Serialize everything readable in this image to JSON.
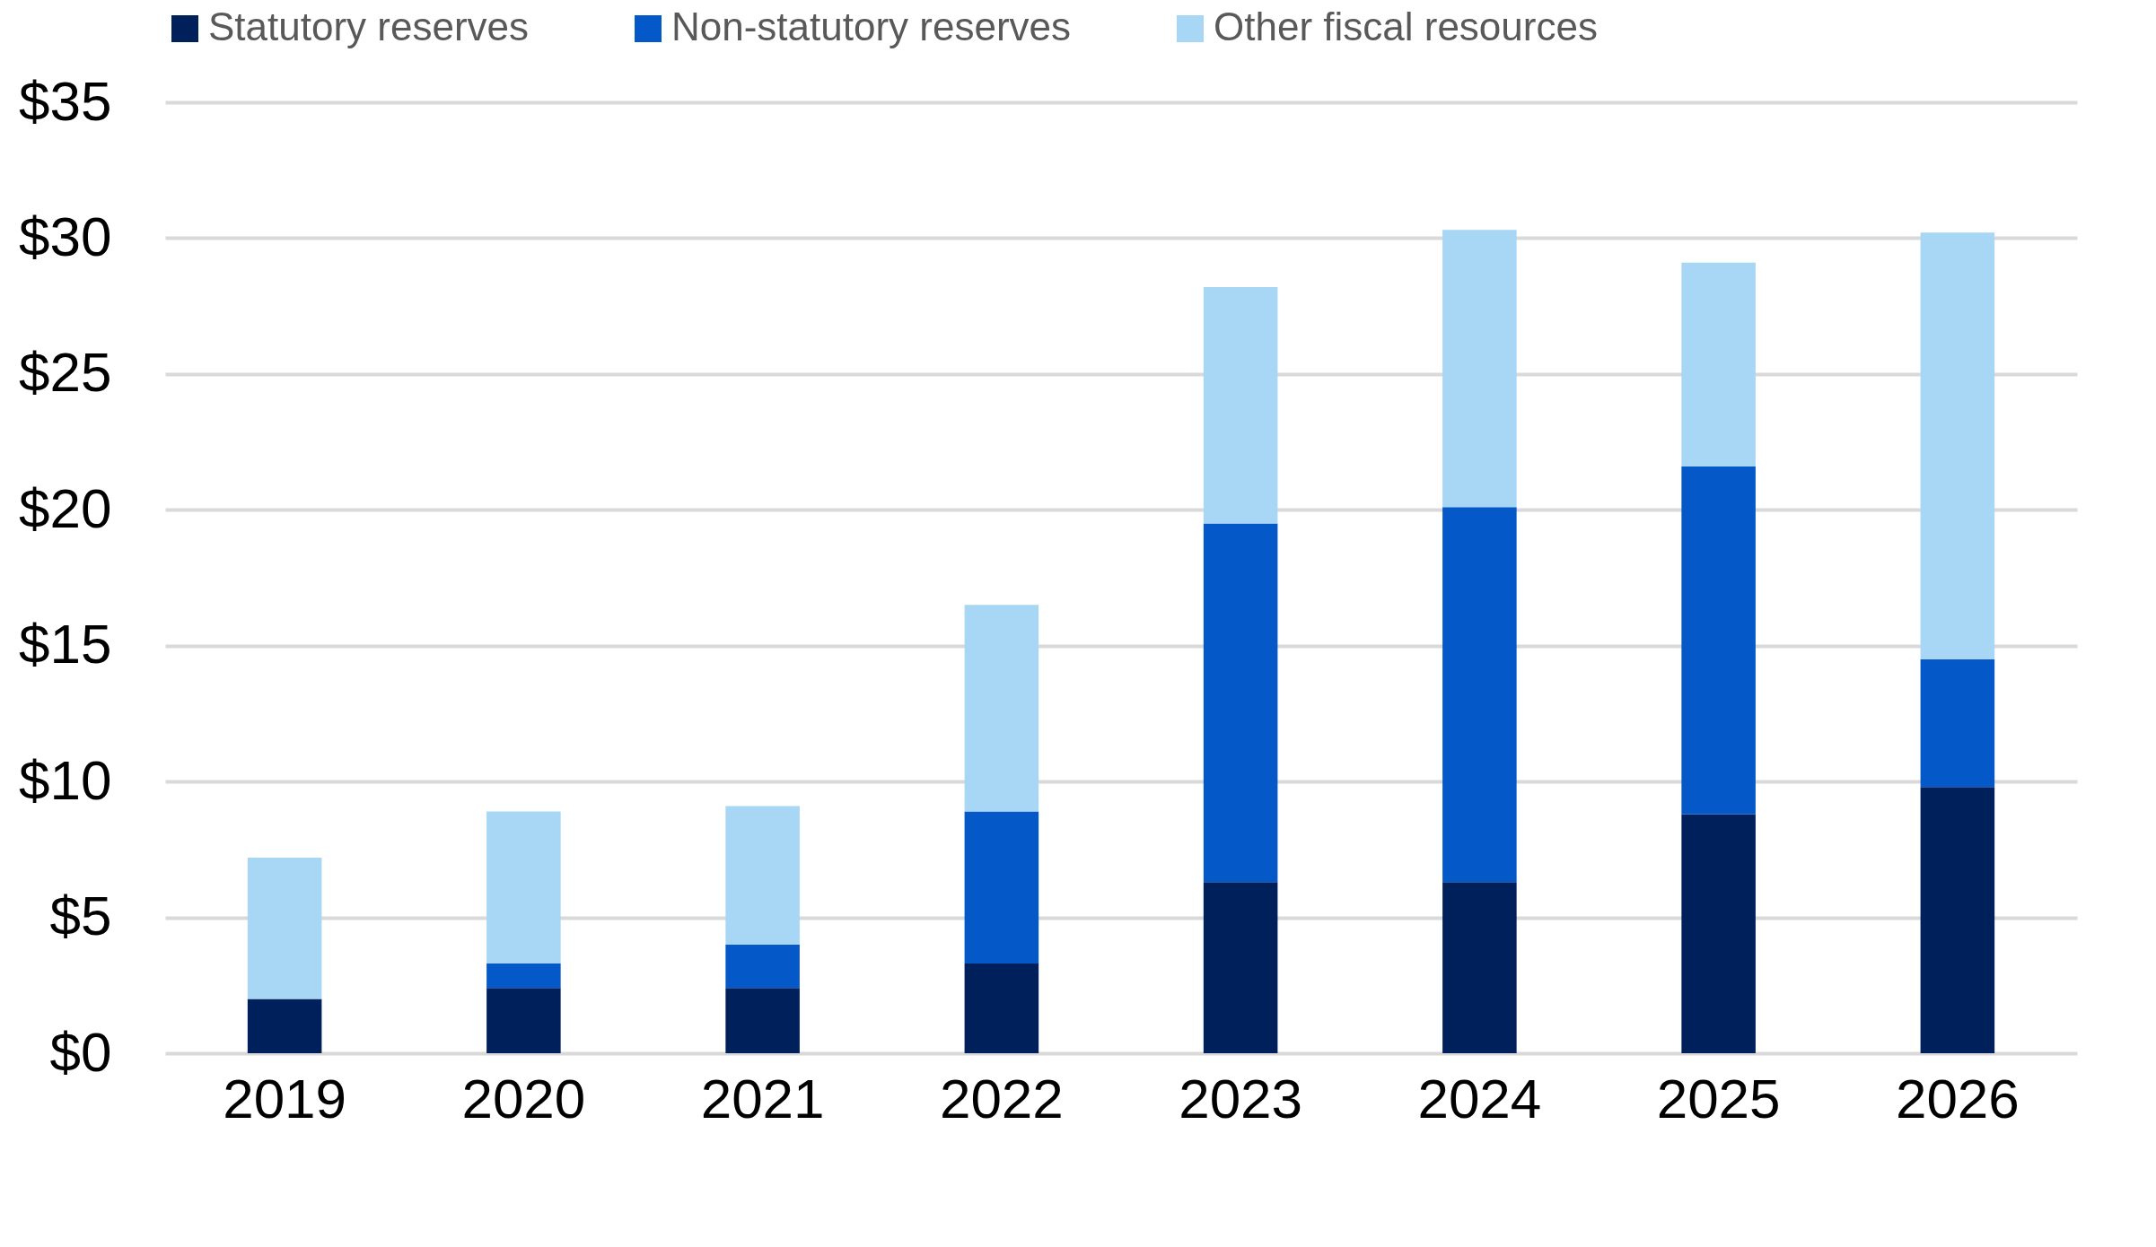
{
  "chart_data": {
    "type": "bar",
    "stacked": true,
    "categories": [
      "2019",
      "2020",
      "2021",
      "2022",
      "2023",
      "2024",
      "2025",
      "2026"
    ],
    "series": [
      {
        "name": "Statutory reserves",
        "color": "#00205b",
        "values": [
          2.0,
          2.4,
          2.4,
          3.3,
          6.3,
          6.3,
          8.8,
          9.8
        ]
      },
      {
        "name": "Non-statutory reserves",
        "color": "#0558c8",
        "values": [
          0,
          0.9,
          1.6,
          5.6,
          13.2,
          13.8,
          12.8,
          4.7
        ]
      },
      {
        "name": "Other fiscal resources",
        "color": "#a8d6f5",
        "values": [
          5.2,
          5.6,
          5.1,
          7.6,
          8.7,
          10.2,
          7.5,
          15.7
        ]
      }
    ],
    "ylim": [
      0,
      35
    ],
    "yticks": [
      {
        "value": 0,
        "label": "$0"
      },
      {
        "value": 5,
        "label": "$5"
      },
      {
        "value": 10,
        "label": "$10"
      },
      {
        "value": 15,
        "label": "$15"
      },
      {
        "value": 20,
        "label": "$20"
      },
      {
        "value": 25,
        "label": "$25"
      },
      {
        "value": 30,
        "label": "$30"
      },
      {
        "value": 35,
        "label": "$35"
      }
    ],
    "grid": "y",
    "legend": "top"
  }
}
